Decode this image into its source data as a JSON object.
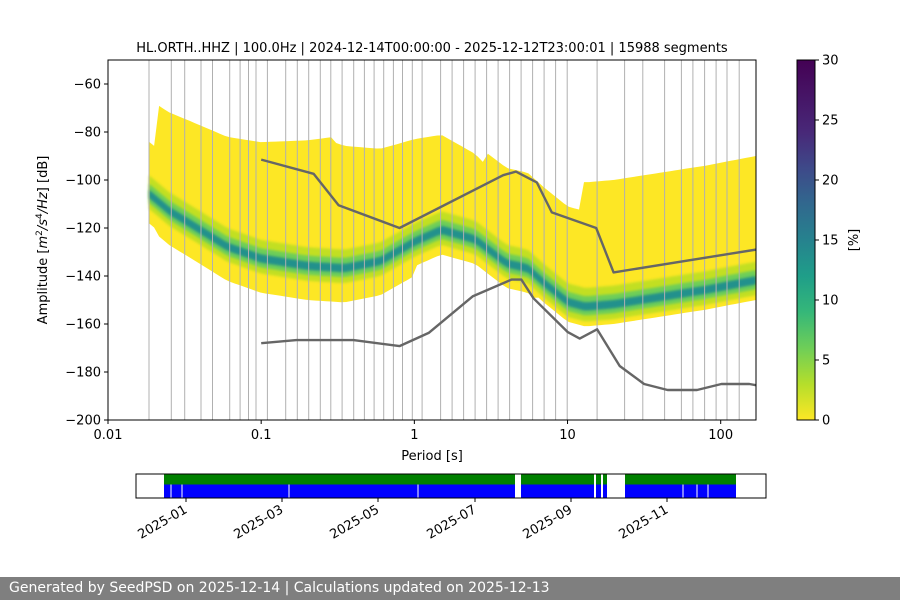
{
  "chart_data": {
    "type": "heatmap",
    "title": "HL.ORTH..HHZ | 100.0Hz | 2024-12-14T00:00:00 - 2025-12-12T23:00:01 | 15988 segments",
    "xlabel": "Period [s]",
    "ylabel_parts": [
      "Amplitude [",
      "m",
      "2",
      "/",
      "s",
      "4",
      "/",
      "Hz",
      "] [dB]"
    ],
    "x_scale": "log",
    "xlim": [
      0.01,
      170
    ],
    "ylim": [
      -200,
      -50
    ],
    "x_ticks": [
      {
        "value": 0.01,
        "label": "0.01"
      },
      {
        "value": 0.1,
        "label": "0.1"
      },
      {
        "value": 1,
        "label": "1"
      },
      {
        "value": 10,
        "label": "10"
      },
      {
        "value": 100,
        "label": "100"
      }
    ],
    "y_ticks": [
      {
        "value": -60,
        "label": "−60"
      },
      {
        "value": -80,
        "label": "−80"
      },
      {
        "value": -100,
        "label": "−100"
      },
      {
        "value": -120,
        "label": "−120"
      },
      {
        "value": -140,
        "label": "−140"
      },
      {
        "value": -160,
        "label": "−160"
      },
      {
        "value": -180,
        "label": "−180"
      },
      {
        "value": -200,
        "label": "−200"
      }
    ],
    "grid": true,
    "grid_periods": [
      0.01852,
      0.0259,
      0.0317,
      0.0405,
      0.0481,
      0.0623,
      0.0728,
      0.0826,
      0.0925,
      0.1098,
      0.1445,
      0.1721,
      0.2044,
      0.2432,
      0.2847,
      0.3374,
      0.4017,
      0.4722,
      0.5462,
      0.6309,
      0.7299,
      0.8368,
      0.9693,
      1.1234,
      1.4835,
      1.7633,
      2.0962,
      2.4918,
      2.9622,
      3.5214,
      4.1862,
      4.9771,
      5.9172,
      7.0353,
      8.3648,
      9.9474,
      15.6,
      23.6,
      31.0,
      43.0,
      55.4,
      65.8,
      78.5,
      93.3,
      110,
      132
    ],
    "noise_model_high": {
      "period": [
        0.1,
        0.22,
        0.32,
        0.8,
        3.8,
        4.6,
        6.3,
        7.9,
        15.4,
        20,
        170
      ],
      "db": [
        -91.5,
        -97.4,
        -110.5,
        -120,
        -98,
        -96.5,
        -101,
        -113.5,
        -120,
        -138.5,
        -129
      ]
    },
    "noise_model_low": {
      "period": [
        0.1,
        0.17,
        0.4,
        0.8,
        1.24,
        2.4,
        4.3,
        5.0,
        6.0,
        10,
        12,
        15.6,
        21.9,
        31.6,
        45,
        70,
        101,
        154,
        170
      ],
      "db": [
        -168,
        -166.7,
        -166.7,
        -169.2,
        -163.7,
        -148.5,
        -141.5,
        -141.5,
        -149.3,
        -163.3,
        -166.1,
        -162.2,
        -177.5,
        -185,
        -187.5,
        -187.5,
        -185,
        -185,
        -185.5
      ]
    },
    "ppsd_mode": {
      "period": [
        0.0185,
        0.025,
        0.04,
        0.06,
        0.1,
        0.2,
        0.35,
        0.6,
        1.0,
        1.5,
        2.5,
        4.0,
        5.5,
        7.0,
        10,
        13,
        20,
        40,
        80,
        170
      ],
      "db": [
        -106,
        -113,
        -121,
        -128,
        -133,
        -136,
        -137,
        -134,
        -126,
        -121,
        -125,
        -135,
        -137,
        -143,
        -151,
        -153,
        -152,
        -149,
        -146,
        -142
      ]
    },
    "colorbar": {
      "label": "[%]",
      "range": [
        0,
        30
      ],
      "ticks": [
        "0",
        "5",
        "10",
        "15",
        "20",
        "25",
        "30"
      ]
    },
    "availability": {
      "x_ticks": [
        "2025-01",
        "2025-03",
        "2025-05",
        "2025-07",
        "2025-09",
        "2025-11"
      ],
      "data_colors": {
        "top": "#008000",
        "bottom": "#0000ff"
      }
    }
  },
  "footer": {
    "text": "Generated by SeedPSD on 2025-12-14 | Calculations updated on 2025-12-13"
  }
}
